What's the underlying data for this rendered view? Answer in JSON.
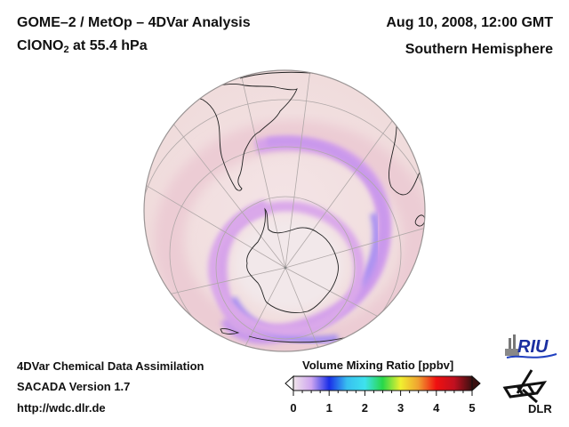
{
  "header": {
    "title_line1": "GOME–2 / MetOp – 4DVar Analysis",
    "species_main": "ClONO",
    "species_sub": "2",
    "species_level": " at 55.4 hPa",
    "date": "Aug 10, 2008, 12:00 GMT",
    "region": "Southern Hemisphere"
  },
  "footer": {
    "line1": "4DVar Chemical Data Assimilation",
    "line2": "SACADA Version 1.7",
    "line3": "http://wdc.dlr.de"
  },
  "colorbar": {
    "title": "Volume Mixing Ratio [ppbv]",
    "min": 0,
    "max": 5,
    "ticks": [
      "0",
      "1",
      "2",
      "3",
      "4",
      "5"
    ],
    "colors": [
      "#f0e4ea",
      "#cfa6f0",
      "#1a2ee8",
      "#38bff0",
      "#3ee2ee",
      "#28d848",
      "#f0f030",
      "#f0a030",
      "#f01010",
      "#c01020",
      "#3a1010"
    ],
    "extend": "both"
  },
  "map": {
    "projection": "orthographic",
    "hemisphere": "south",
    "background_color": "#f2e2e2",
    "field_color_low": "#f4e6e8",
    "field_color_mid": "#d8a0e8",
    "field_color_high": "#a88cf0"
  },
  "logos": {
    "riu": "RIU",
    "dlr": "DLR"
  }
}
